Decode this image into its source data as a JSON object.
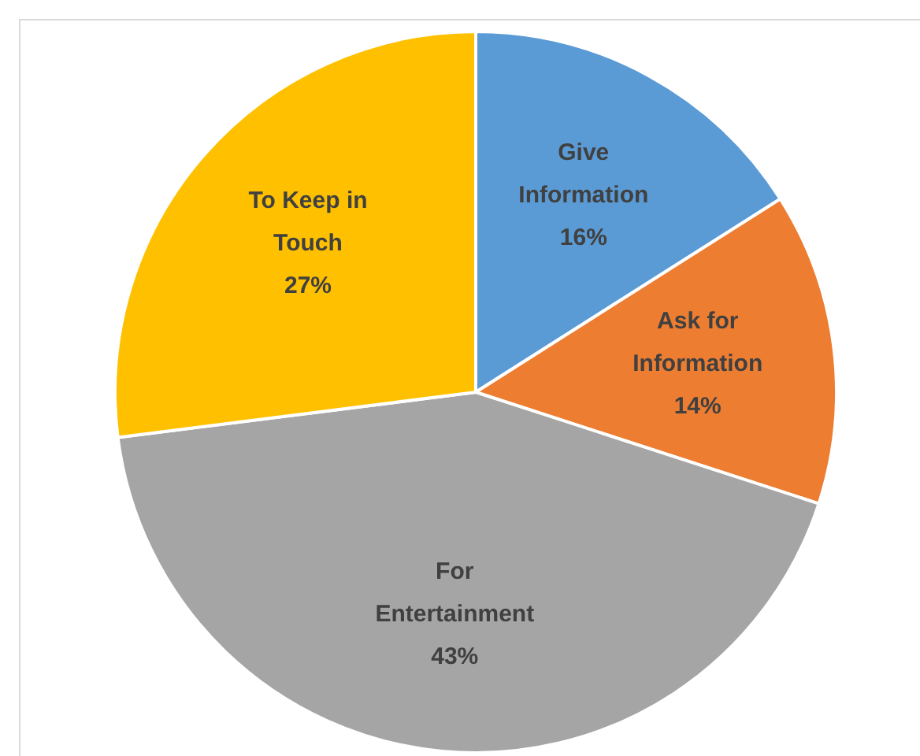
{
  "chart_data": {
    "type": "pie",
    "categories": [
      "Give Information",
      "Ask for Information",
      "For Entertainment",
      "To Keep in Touch"
    ],
    "values": [
      16,
      14,
      43,
      27
    ],
    "colors": [
      "#5b9bd5",
      "#ed7d31",
      "#a5a5a5",
      "#ffc000"
    ],
    "value_labels": [
      "16%",
      "14%",
      "43%",
      "27%"
    ],
    "legend": false
  }
}
